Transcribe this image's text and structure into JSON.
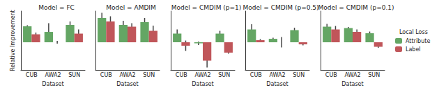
{
  "chart_data": [
    {
      "type": "bar",
      "title": "Model = FC",
      "xlabel": "Dataset",
      "ylabel": "Relative Improvement",
      "categories": [
        "CUB",
        "AWA2",
        "SUN"
      ],
      "ylim": [
        -8,
        9
      ],
      "tick_labels": "x",
      "grid": false,
      "series": [
        {
          "name": "Attribute",
          "color": "#64a664",
          "values": [
            4.6,
            3.0,
            5.0
          ],
          "errors": [
            0.3,
            2.5,
            1.0
          ]
        },
        {
          "name": "Label",
          "color": "#c0565a",
          "values": [
            2.3,
            0.0,
            2.5
          ],
          "errors": [
            0.5,
            0.4,
            1.2
          ]
        }
      ]
    },
    {
      "type": "bar",
      "title": "Model = AMDIM",
      "xlabel": "Dataset",
      "categories": [
        "CUB",
        "AWA2",
        "SUN"
      ],
      "ylim": [
        -8,
        9
      ],
      "tick_labels": "x",
      "grid": false,
      "series": [
        {
          "name": "Attribute",
          "color": "#64a664",
          "values": [
            7.0,
            5.0,
            5.8
          ],
          "errors": [
            1.5,
            1.2,
            1.2
          ]
        },
        {
          "name": "Label",
          "color": "#c0565a",
          "values": [
            6.0,
            4.5,
            3.3
          ],
          "errors": [
            1.5,
            1.0,
            1.5
          ]
        }
      ]
    },
    {
      "type": "bar",
      "title": "Model = CMDIM (p=1)",
      "xlabel": "Dataset",
      "categories": [
        "CUB",
        "AWA2",
        "SUN"
      ],
      "ylim": [
        -8,
        9
      ],
      "tick_labels": "x",
      "grid": false,
      "series": [
        {
          "name": "Attribute",
          "color": "#64a664",
          "values": [
            2.5,
            -0.3,
            2.5
          ],
          "errors": [
            1.2,
            0.5,
            0.8
          ]
        },
        {
          "name": "Label",
          "color": "#c0565a",
          "values": [
            -1.0,
            -5.3,
            -3.0
          ],
          "errors": [
            1.5,
            2.0,
            0.3
          ]
        }
      ]
    },
    {
      "type": "bar",
      "title": "Model = CMDIM (p=0.5)",
      "xlabel": "Dataset",
      "categories": [
        "CUB",
        "AWA2",
        "SUN"
      ],
      "ylim": [
        -8,
        9
      ],
      "tick_labels": "x",
      "grid": false,
      "series": [
        {
          "name": "Attribute",
          "color": "#64a664",
          "values": [
            3.7,
            1.0,
            3.5
          ],
          "errors": [
            1.5,
            0.3,
            0.7
          ]
        },
        {
          "name": "Label",
          "color": "#c0565a",
          "values": [
            0.6,
            0.0,
            -0.6
          ],
          "errors": [
            0.3,
            1.5,
            0.3
          ]
        }
      ]
    },
    {
      "type": "bar",
      "title": "Model = CMDIM (p=0.1)",
      "xlabel": "Dataset",
      "categories": [
        "CUB",
        "AWA2",
        "SUN"
      ],
      "ylim": [
        -8,
        9
      ],
      "tick_labels": "x",
      "grid": false,
      "legend": "right",
      "legend_title": "Local Loss",
      "series": [
        {
          "name": "Attribute",
          "color": "#64a664",
          "values": [
            4.5,
            4.1,
            2.6
          ],
          "errors": [
            0.8,
            0.3,
            0.5
          ]
        },
        {
          "name": "Label",
          "color": "#c0565a",
          "values": [
            3.7,
            3.0,
            -1.3
          ],
          "errors": [
            1.0,
            0.7,
            0.3
          ]
        }
      ]
    }
  ]
}
